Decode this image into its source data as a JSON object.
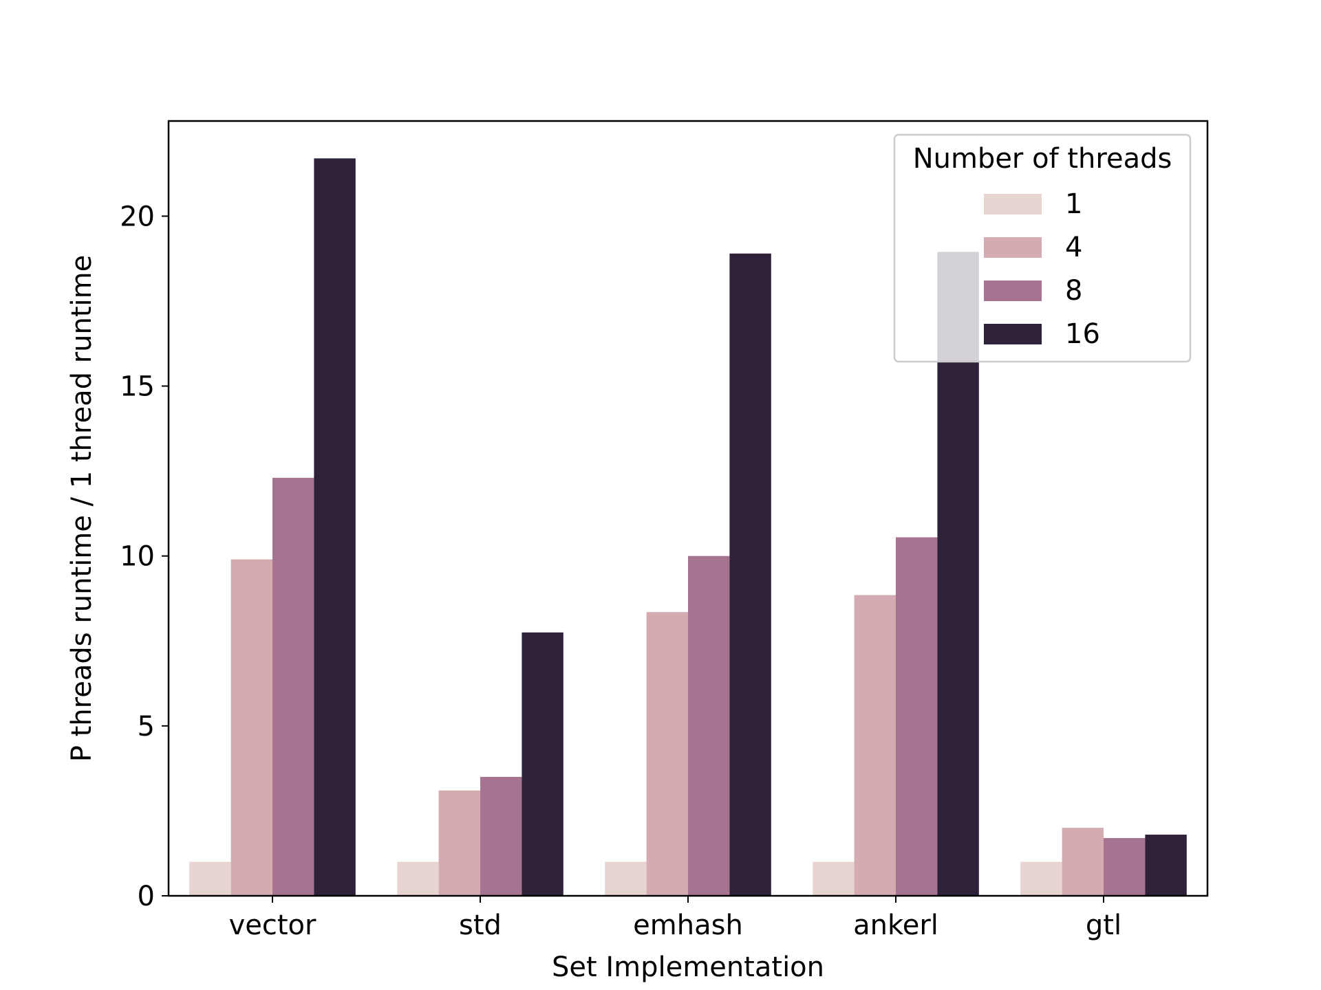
{
  "chart_data": {
    "type": "bar",
    "xlabel": "Set Implementation",
    "ylabel": "P threads runtime / 1 thread runtime",
    "categories": [
      "vector",
      "std",
      "emhash",
      "ankerl",
      "gtl"
    ],
    "ylim": [
      0,
      22.8
    ],
    "yticks": [
      0,
      5,
      10,
      15,
      20
    ],
    "grid": false,
    "legend": {
      "title": "Number of threads",
      "placement": "top-right"
    },
    "series": [
      {
        "name": "1",
        "color": "#e8d4d1",
        "values": [
          1.0,
          1.0,
          1.0,
          1.0,
          1.0
        ]
      },
      {
        "name": "4",
        "color": "#d3abb1",
        "values": [
          9.9,
          3.1,
          8.35,
          8.85,
          2.0
        ]
      },
      {
        "name": "8",
        "color": "#a67490",
        "values": [
          12.3,
          3.5,
          10.0,
          10.55,
          1.7
        ]
      },
      {
        "name": "16",
        "color": "#2e213a",
        "values": [
          21.7,
          7.75,
          18.9,
          18.95,
          1.8
        ]
      }
    ]
  }
}
